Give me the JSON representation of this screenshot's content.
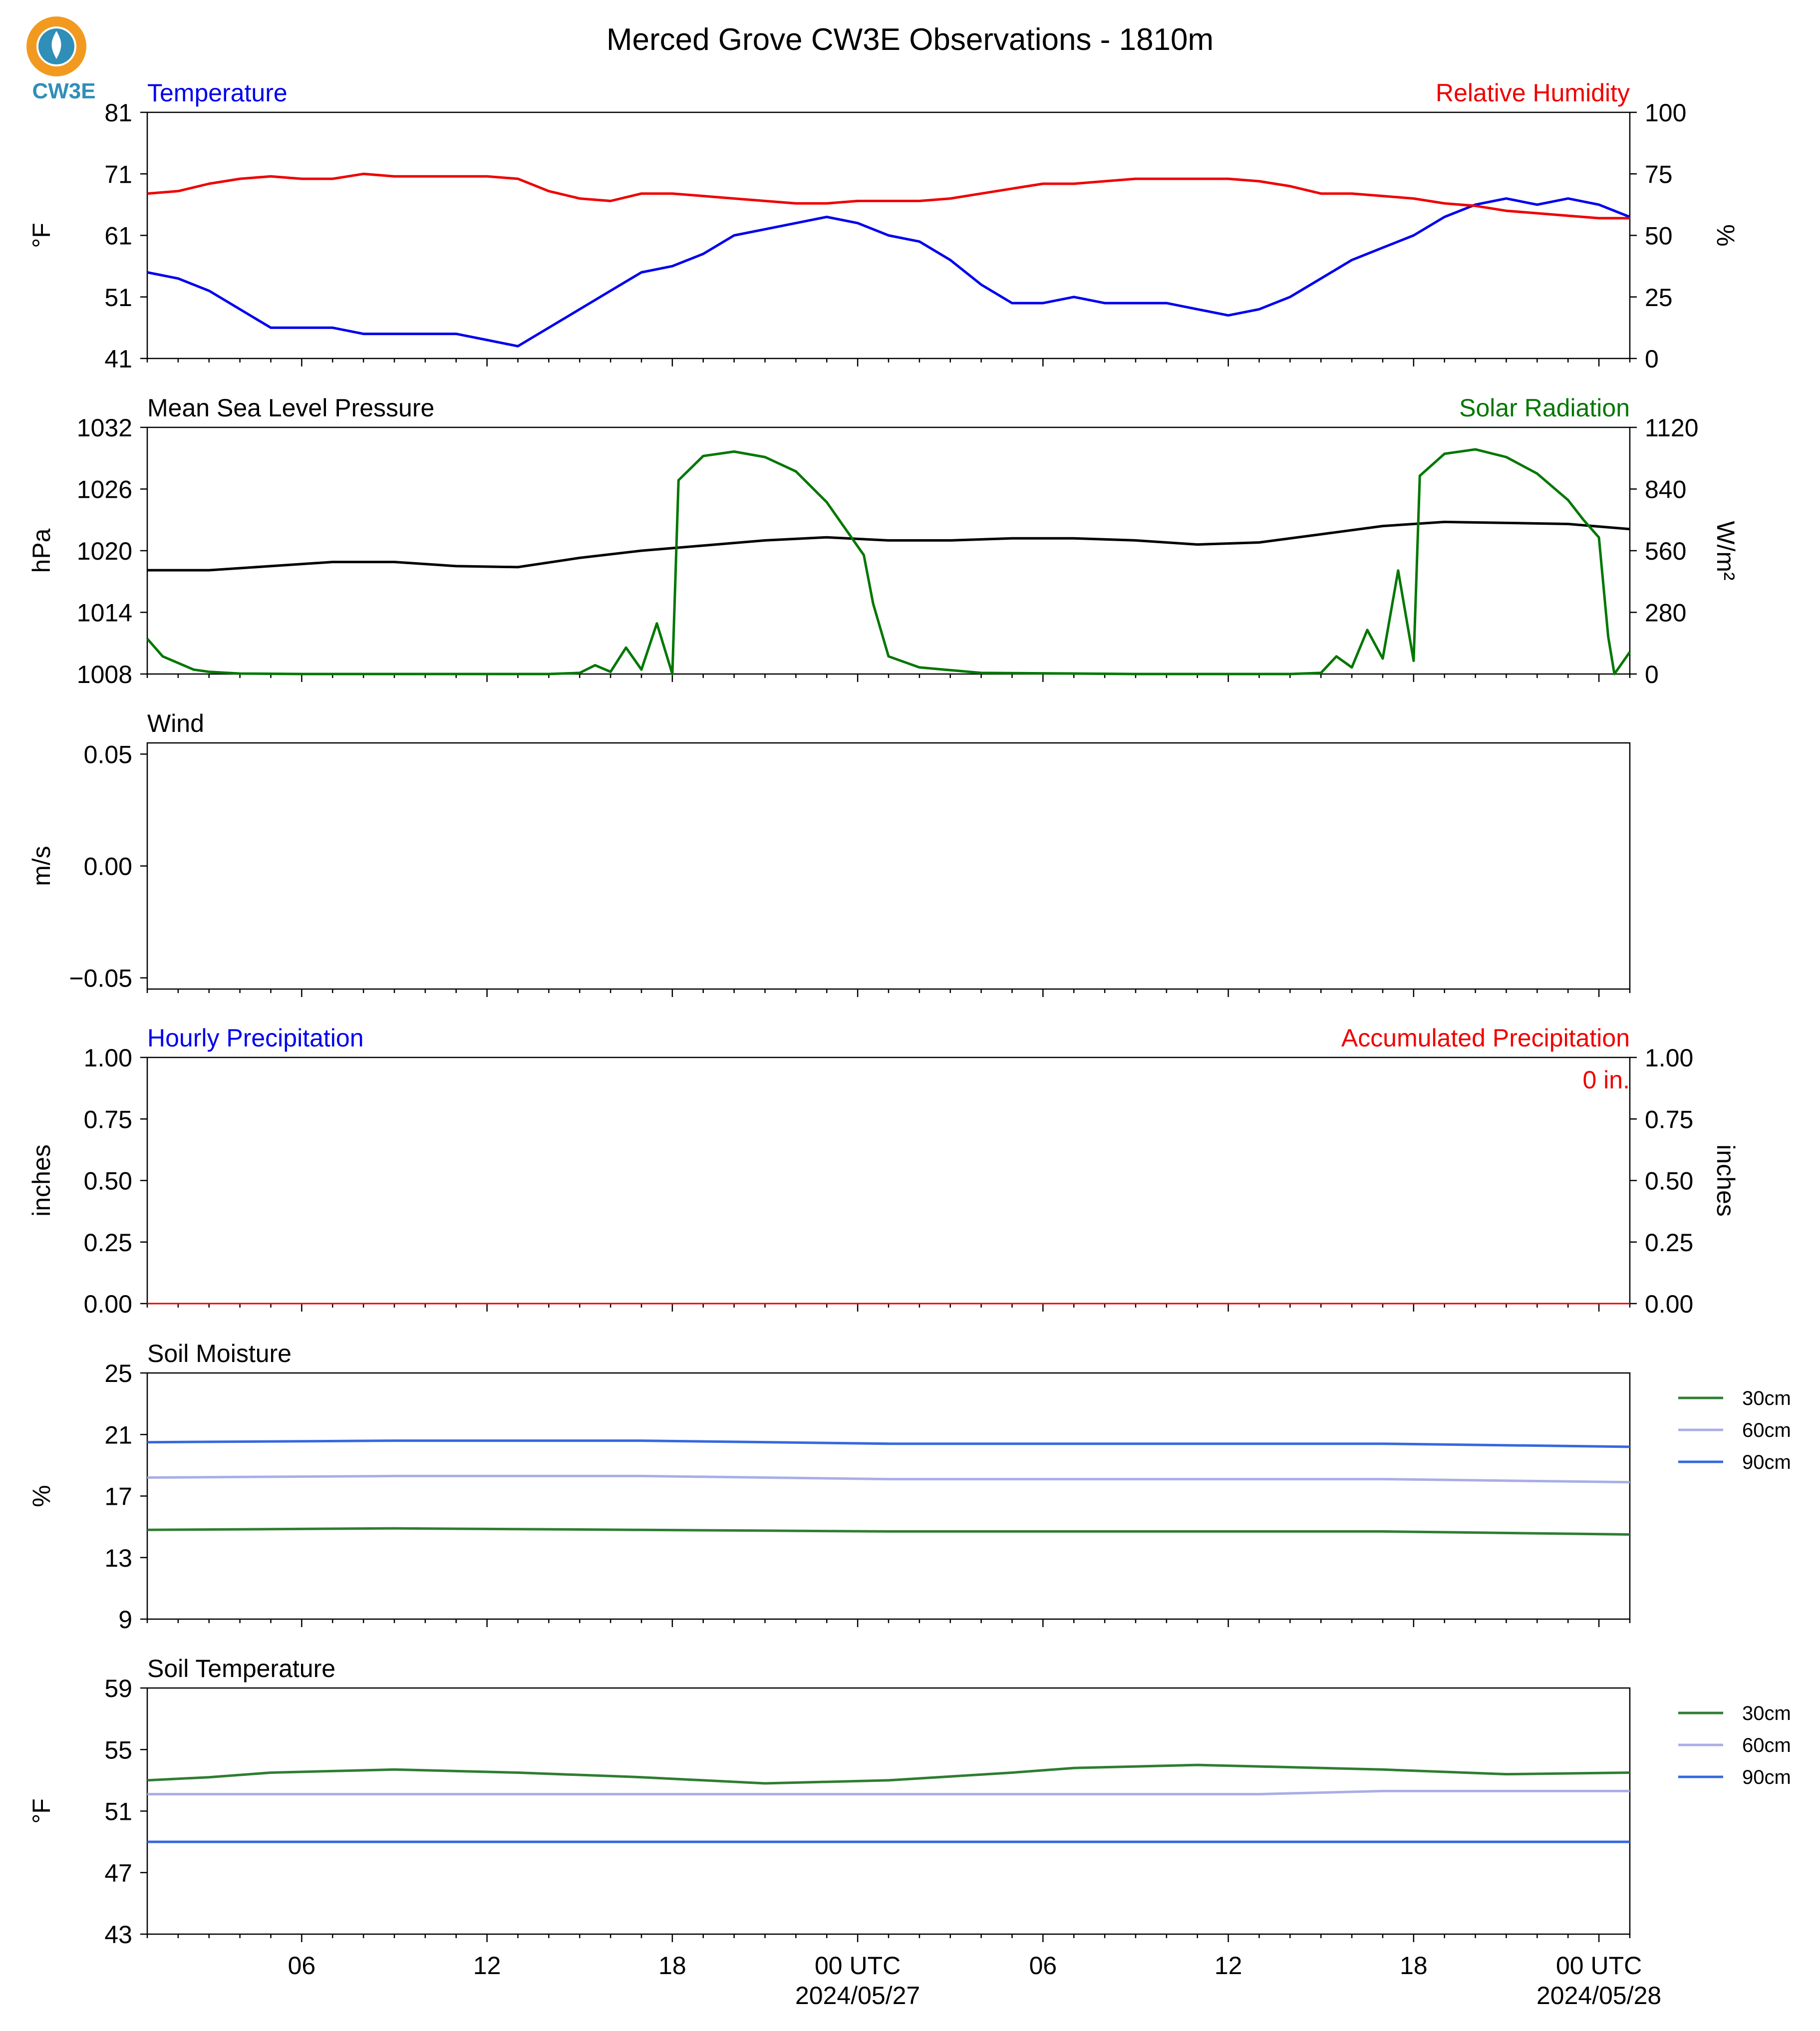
{
  "title": "Merced Grove CW3E Observations - 1810m",
  "logo": {
    "text": "CW3E",
    "ring_color": "#f29a1f",
    "wave_color": "#2f8fb8"
  },
  "time_axis": {
    "ticks": [
      {
        "hour": 6,
        "label": "06"
      },
      {
        "hour": 12,
        "label": "12"
      },
      {
        "hour": 18,
        "label": "18"
      },
      {
        "hour": 24,
        "label": "00 UTC",
        "sublabel": "2024/05/27"
      },
      {
        "hour": 30,
        "label": "06"
      },
      {
        "hour": 36,
        "label": "12"
      },
      {
        "hour": 42,
        "label": "18"
      },
      {
        "hour": 48,
        "label": "00 UTC",
        "sublabel": "2024/05/28"
      }
    ],
    "range_hours": [
      1.0,
      49.0
    ]
  },
  "colors": {
    "temperature": "#0000ee",
    "humidity": "#ee0000",
    "pressure": "#000000",
    "solar": "#007700",
    "soil30": "#2e7d32",
    "soil60": "#a9aee6",
    "soil90": "#3568e0",
    "precip_accum": "#ee0000",
    "precip_hourly": "#0000ee"
  },
  "panels": {
    "temp_rh": {
      "title_left": "Temperature",
      "title_right": "Relative Humidity",
      "ylabel_left": "°F",
      "ylabel_right": "%"
    },
    "pressure_solar": {
      "title_left": "Mean Sea Level Pressure",
      "title_right": "Solar Radiation",
      "ylabel_left": "hPa",
      "ylabel_right": "W/m²"
    },
    "wind": {
      "title_left": "Wind",
      "ylabel_left": "m/s"
    },
    "precip": {
      "title_left": "Hourly Precipitation",
      "title_right": "Accumulated Precipitation",
      "ylabel_left": "inches",
      "ylabel_right": "inches",
      "annotation": "0 in."
    },
    "soil_moisture": {
      "title_left": "Soil Moisture",
      "ylabel_left": "%",
      "legend": [
        "30cm",
        "60cm",
        "90cm"
      ]
    },
    "soil_temp": {
      "title_left": "Soil Temperature",
      "ylabel_left": "°F",
      "legend": [
        "30cm",
        "60cm",
        "90cm"
      ]
    }
  },
  "chart_data": [
    {
      "type": "line",
      "title": "Temperature / Relative Humidity",
      "x_unit": "hours since 2024/05/26 00 UTC",
      "y_left": {
        "ticks": [
          "41",
          "51",
          "61",
          "71",
          "81"
        ],
        "ylim": [
          41,
          81
        ]
      },
      "y_right": {
        "ticks": [
          "0",
          "25",
          "50",
          "75",
          "100"
        ],
        "ylim": [
          0,
          100
        ]
      },
      "series": [
        {
          "name": "Temperature",
          "axis": "left",
          "x": [
            1,
            2,
            3,
            4,
            5,
            6,
            7,
            8,
            9,
            10,
            11,
            12,
            13,
            14,
            15,
            16,
            17,
            18,
            19,
            20,
            21,
            22,
            23,
            24,
            25,
            26,
            27,
            28,
            29,
            30,
            31,
            32,
            33,
            34,
            35,
            36,
            37,
            38,
            39,
            40,
            41,
            42,
            43,
            44,
            45,
            46,
            47,
            48,
            49
          ],
          "y": [
            55,
            54,
            52,
            49,
            46,
            46,
            46,
            45,
            45,
            45,
            45,
            44,
            43,
            46,
            49,
            52,
            55,
            56,
            58,
            61,
            62,
            63,
            64,
            63,
            61,
            60,
            57,
            53,
            50,
            50,
            51,
            50,
            50,
            50,
            49,
            48,
            49,
            51,
            54,
            57,
            59,
            61,
            64,
            66,
            67,
            66,
            67,
            66,
            64
          ]
        },
        {
          "name": "Relative Humidity",
          "axis": "right",
          "x": [
            1,
            2,
            3,
            4,
            5,
            6,
            7,
            8,
            9,
            10,
            11,
            12,
            13,
            14,
            15,
            16,
            17,
            18,
            19,
            20,
            21,
            22,
            23,
            24,
            25,
            26,
            27,
            28,
            29,
            30,
            31,
            32,
            33,
            34,
            35,
            36,
            37,
            38,
            39,
            40,
            41,
            42,
            43,
            44,
            45,
            46,
            47,
            48,
            49
          ],
          "y": [
            67,
            68,
            71,
            73,
            74,
            73,
            73,
            75,
            74,
            74,
            74,
            74,
            73,
            68,
            65,
            64,
            67,
            67,
            66,
            65,
            64,
            63,
            63,
            64,
            64,
            64,
            65,
            67,
            69,
            71,
            71,
            72,
            73,
            73,
            73,
            73,
            72,
            70,
            67,
            67,
            66,
            65,
            63,
            62,
            60,
            59,
            58,
            57,
            57
          ]
        }
      ]
    },
    {
      "type": "line",
      "title": "Mean Sea Level Pressure / Solar Radiation",
      "x_unit": "hours since 2024/05/26 00 UTC",
      "y_left": {
        "ticks": [
          "1008",
          "1014",
          "1020",
          "1026",
          "1032"
        ],
        "ylim": [
          1008,
          1032
        ]
      },
      "y_right": {
        "ticks": [
          "0",
          "280",
          "560",
          "840",
          "1120"
        ],
        "ylim": [
          0,
          1120
        ]
      },
      "series": [
        {
          "name": "Mean Sea Level Pressure",
          "axis": "left",
          "x": [
            1,
            3,
            5,
            7,
            9,
            11,
            13,
            15,
            17,
            19,
            21,
            23,
            25,
            27,
            29,
            31,
            33,
            35,
            37,
            39,
            41,
            43,
            45,
            47,
            49
          ],
          "y": [
            1018.1,
            1018.1,
            1018.5,
            1018.9,
            1018.9,
            1018.5,
            1018.4,
            1019.3,
            1020.0,
            1020.5,
            1021.0,
            1021.3,
            1021.0,
            1021.0,
            1021.2,
            1021.2,
            1021.0,
            1020.6,
            1020.8,
            1021.6,
            1022.4,
            1022.8,
            1022.7,
            1022.6,
            1022.1
          ]
        },
        {
          "name": "Solar Radiation",
          "axis": "right",
          "x": [
            1,
            1.5,
            2,
            2.5,
            3,
            4,
            6,
            9,
            12,
            14,
            15,
            15.5,
            16,
            16.5,
            17,
            17.5,
            18,
            18.2,
            19,
            20,
            21,
            22,
            23,
            23.5,
            24,
            24.2,
            24.5,
            25,
            26,
            28,
            33,
            36,
            38,
            39,
            39.5,
            40,
            40.5,
            41,
            41.5,
            42,
            42.2,
            43,
            44,
            45,
            46,
            47,
            47.5,
            48,
            48.3,
            48.5,
            49
          ],
          "y": [
            160,
            80,
            50,
            20,
            10,
            2,
            0,
            0,
            0,
            0,
            5,
            40,
            10,
            120,
            20,
            230,
            0,
            880,
            990,
            1010,
            985,
            920,
            780,
            680,
            580,
            540,
            320,
            80,
            30,
            5,
            0,
            0,
            0,
            5,
            80,
            30,
            200,
            70,
            470,
            60,
            900,
            1000,
            1020,
            985,
            910,
            790,
            700,
            620,
            170,
            0,
            100
          ]
        }
      ]
    },
    {
      "type": "line",
      "title": "Wind",
      "y_left": {
        "ticks": [
          "0.05",
          "0.00",
          "−0.05"
        ],
        "ylim": [
          -0.055,
          0.055
        ]
      },
      "series": []
    },
    {
      "type": "line",
      "title": "Hourly Precipitation / Accumulated Precipitation",
      "y_left": {
        "ticks": [
          "0.00",
          "0.25",
          "0.50",
          "0.75",
          "1.00"
        ],
        "ylim": [
          0,
          1
        ]
      },
      "y_right": {
        "ticks": [
          "0.00",
          "0.25",
          "0.50",
          "0.75",
          "1.00"
        ],
        "ylim": [
          0,
          1
        ]
      },
      "series": [
        {
          "name": "Accumulated Precipitation",
          "axis": "right",
          "x": [
            1,
            49
          ],
          "y": [
            0,
            0
          ]
        }
      ]
    },
    {
      "type": "line",
      "title": "Soil Moisture",
      "y_left": {
        "ticks": [
          "9",
          "13",
          "17",
          "21",
          "25"
        ],
        "ylim": [
          9,
          25
        ]
      },
      "series": [
        {
          "name": "30cm",
          "x": [
            1,
            9,
            17,
            25,
            33,
            41,
            49
          ],
          "y": [
            14.8,
            14.9,
            14.8,
            14.7,
            14.7,
            14.7,
            14.5
          ]
        },
        {
          "name": "60cm",
          "x": [
            1,
            9,
            17,
            25,
            33,
            41,
            49
          ],
          "y": [
            18.2,
            18.3,
            18.3,
            18.1,
            18.1,
            18.1,
            17.9
          ]
        },
        {
          "name": "90cm",
          "x": [
            1,
            9,
            17,
            25,
            33,
            41,
            49
          ],
          "y": [
            20.5,
            20.6,
            20.6,
            20.4,
            20.4,
            20.4,
            20.2
          ]
        }
      ]
    },
    {
      "type": "line",
      "title": "Soil Temperature",
      "y_left": {
        "ticks": [
          "43",
          "47",
          "51",
          "55",
          "59"
        ],
        "ylim": [
          43,
          59
        ]
      },
      "series": [
        {
          "name": "30cm",
          "x": [
            1,
            3,
            5,
            9,
            13,
            17,
            21,
            25,
            29,
            31,
            35,
            37,
            41,
            45,
            49
          ],
          "y": [
            53.0,
            53.2,
            53.5,
            53.7,
            53.5,
            53.2,
            52.8,
            53.0,
            53.5,
            53.8,
            54.0,
            53.9,
            53.7,
            53.4,
            53.5
          ]
        },
        {
          "name": "60cm",
          "x": [
            1,
            13,
            25,
            37,
            41,
            49
          ],
          "y": [
            52.1,
            52.1,
            52.1,
            52.1,
            52.3,
            52.3
          ]
        },
        {
          "name": "90cm",
          "x": [
            1,
            13,
            25,
            41,
            43,
            49
          ],
          "y": [
            49.0,
            49.0,
            49.0,
            49.0,
            49.0,
            49.0
          ]
        }
      ]
    }
  ]
}
